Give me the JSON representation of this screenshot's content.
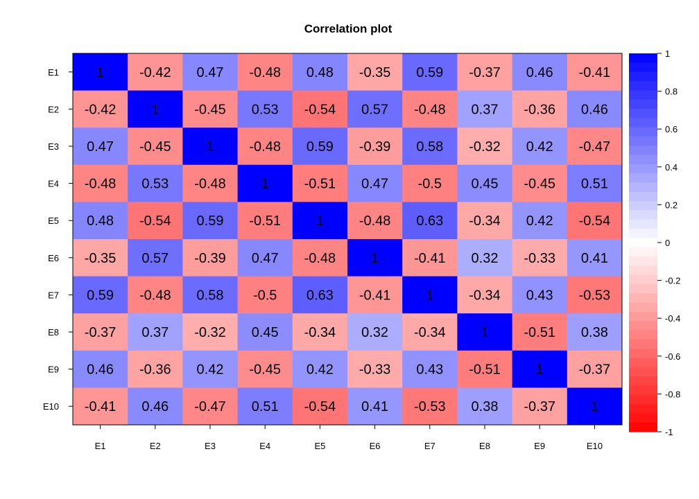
{
  "chart_data": {
    "type": "heatmap",
    "title": "Correlation plot",
    "xlabel": "",
    "ylabel": "",
    "x_categories": [
      "E1",
      "E2",
      "E3",
      "E4",
      "E5",
      "E6",
      "E7",
      "E8",
      "E9",
      "E10"
    ],
    "y_categories": [
      "E1",
      "E2",
      "E3",
      "E4",
      "E5",
      "E6",
      "E7",
      "E8",
      "E9",
      "E10"
    ],
    "values": [
      [
        1,
        -0.42,
        0.47,
        -0.48,
        0.48,
        -0.35,
        0.59,
        -0.37,
        0.46,
        -0.41
      ],
      [
        -0.42,
        1,
        -0.45,
        0.53,
        -0.54,
        0.57,
        -0.48,
        0.37,
        -0.36,
        0.46
      ],
      [
        0.47,
        -0.45,
        1,
        -0.48,
        0.59,
        -0.39,
        0.58,
        -0.32,
        0.42,
        -0.47
      ],
      [
        -0.48,
        0.53,
        -0.48,
        1,
        -0.51,
        0.47,
        -0.5,
        0.45,
        -0.45,
        0.51
      ],
      [
        0.48,
        -0.54,
        0.59,
        -0.51,
        1,
        -0.48,
        0.63,
        -0.34,
        0.42,
        -0.54
      ],
      [
        -0.35,
        0.57,
        -0.39,
        0.47,
        -0.48,
        1,
        -0.41,
        0.32,
        -0.33,
        0.41
      ],
      [
        0.59,
        -0.48,
        0.58,
        -0.5,
        0.63,
        -0.41,
        1,
        -0.34,
        0.43,
        -0.53
      ],
      [
        -0.37,
        0.37,
        -0.32,
        0.45,
        -0.34,
        0.32,
        -0.34,
        1,
        -0.51,
        0.38
      ],
      [
        0.46,
        -0.36,
        0.42,
        -0.45,
        0.42,
        -0.33,
        0.43,
        -0.51,
        1,
        -0.37
      ],
      [
        -0.41,
        0.46,
        -0.47,
        0.51,
        -0.54,
        0.41,
        -0.53,
        0.38,
        -0.37,
        1
      ]
    ],
    "legend": {
      "position": "right",
      "range": [
        -1,
        1
      ],
      "ticks": [
        1,
        0.8,
        0.6,
        0.4,
        0.2,
        0,
        -0.2,
        -0.4,
        -0.6,
        -0.8,
        -1
      ],
      "tick_labels": [
        "1",
        "0.8",
        "0.6",
        "0.4",
        "0.2",
        "0",
        "-0.2",
        "-0.4",
        "-0.6",
        "-0.8",
        "-1"
      ]
    },
    "colors": {
      "low": "#FF0000",
      "mid": "#FFFFFF",
      "high": "#0000FF"
    },
    "grid": false
  }
}
